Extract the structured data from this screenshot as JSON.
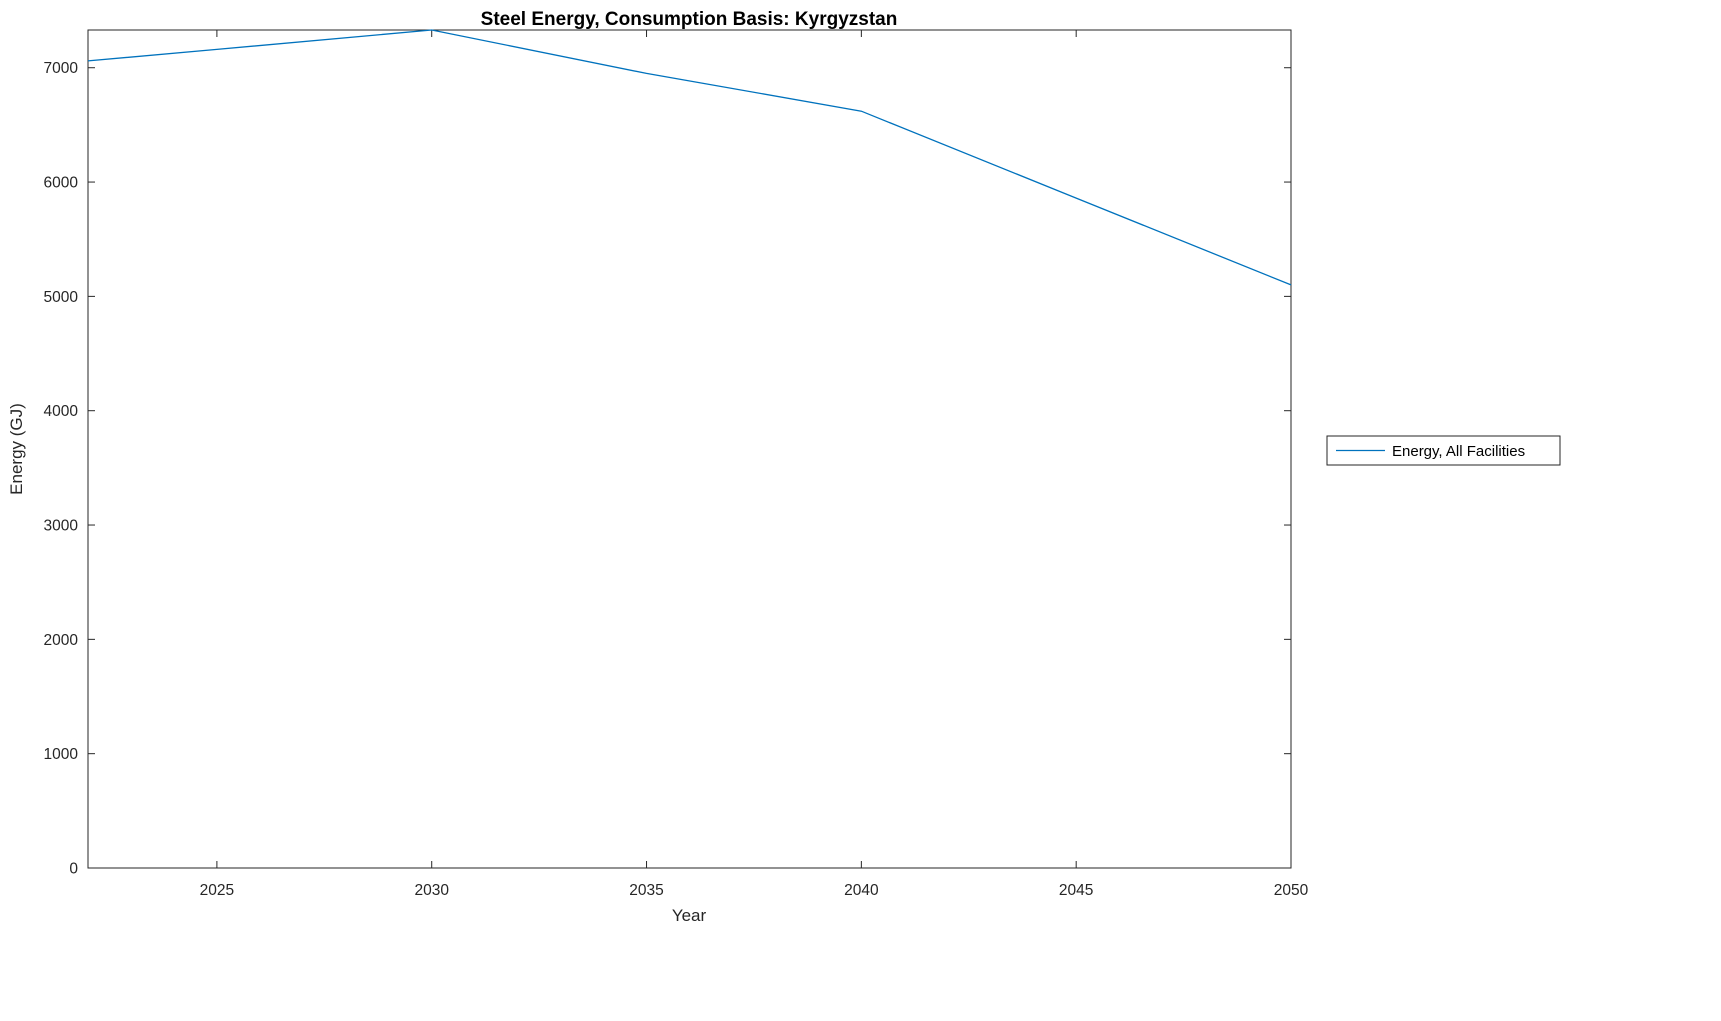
{
  "figure": {
    "background": "#ffffff"
  },
  "chart_data": {
    "type": "line",
    "title": "Steel Energy, Consumption Basis: Kyrgyzstan",
    "xlabel": "Year",
    "ylabel": "Energy (GJ)",
    "xlim": [
      2022,
      2050
    ],
    "ylim": [
      0,
      7330
    ],
    "xticks": [
      2025,
      2030,
      2035,
      2040,
      2045,
      2050
    ],
    "yticks": [
      0,
      1000,
      2000,
      3000,
      4000,
      5000,
      6000,
      7000
    ],
    "grid": false,
    "axis_color": "#262626",
    "legend": {
      "position": "right-outside",
      "entries": [
        "Energy, All Facilities"
      ]
    },
    "series": [
      {
        "name": "Energy, All Facilities",
        "color": "#0072BD",
        "x": [
          2022,
          2025,
          2030,
          2035,
          2040,
          2045,
          2050
        ],
        "y": [
          7060,
          7160,
          7330,
          6950,
          6620,
          5860,
          5100
        ]
      }
    ]
  }
}
